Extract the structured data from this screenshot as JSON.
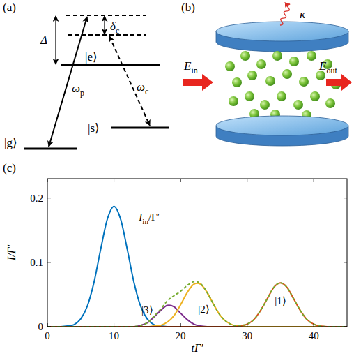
{
  "panel_a": {
    "panel_label": "(a)",
    "levels": {
      "e": "|e⟩",
      "g": "|g⟩",
      "s": "|s⟩"
    },
    "detuning": "Δ",
    "two_photon_detuning": {
      "main": "δ",
      "sub": "c"
    },
    "probe": {
      "main": "ω",
      "sub": "p"
    },
    "control": {
      "main": "ω",
      "sub": "c"
    }
  },
  "panel_b": {
    "panel_label": "(b)",
    "input": {
      "main": "E",
      "sub": "in"
    },
    "output": {
      "main": "E",
      "sub": "out"
    },
    "decay": "κ"
  },
  "chart_data": {
    "type": "line",
    "panel_label": "(c)",
    "x_label": "tΓ′",
    "y_label": "I/Γ′",
    "x": [
      0,
      1,
      2,
      3,
      4,
      5,
      6,
      7,
      8,
      9,
      10,
      11,
      12,
      13,
      14,
      15,
      16,
      17,
      18,
      19,
      20,
      21,
      22,
      23,
      24,
      25,
      26,
      27,
      28,
      29,
      30,
      31,
      32,
      33,
      34,
      35,
      36,
      37,
      38,
      39,
      40,
      41,
      42,
      43,
      44,
      45
    ],
    "xlim": [
      0,
      45
    ],
    "ylim": [
      0,
      0.23
    ],
    "xticks": [
      0,
      10,
      20,
      30,
      40
    ],
    "yticks": [
      0,
      0.1,
      0.2
    ],
    "series": [
      {
        "color": "#0072BD",
        "line_style": "solid",
        "values": [
          0,
          0,
          0,
          0.001,
          0.003,
          0.012,
          0.032,
          0.069,
          0.12,
          0.167,
          0.187,
          0.167,
          0.12,
          0.069,
          0.032,
          0.012,
          0.003,
          0.001,
          0,
          0,
          0,
          0,
          0,
          0,
          0,
          0,
          0,
          0,
          0,
          0,
          0,
          0,
          0,
          0,
          0,
          0,
          0,
          0,
          0,
          0,
          0,
          0,
          0,
          0,
          0,
          0
        ]
      },
      {
        "color": "#7E2F8E",
        "line_style": "solid",
        "values": [
          0,
          0,
          0,
          0,
          0,
          0,
          0,
          0,
          0,
          0,
          0,
          0,
          0,
          0,
          0.002,
          0.006,
          0.015,
          0.025,
          0.033,
          0.031,
          0.021,
          0.011,
          0.004,
          0.001,
          0,
          0,
          0,
          0,
          0,
          0,
          0,
          0,
          0,
          0,
          0,
          0,
          0,
          0,
          0,
          0,
          0,
          0,
          0,
          0,
          0,
          0
        ]
      },
      {
        "color": "#EDB120",
        "line_style": "solid",
        "values": [
          0,
          0,
          0,
          0,
          0,
          0,
          0,
          0,
          0,
          0,
          0,
          0,
          0,
          0,
          0,
          0,
          0.001,
          0.002,
          0.007,
          0.017,
          0.034,
          0.053,
          0.066,
          0.066,
          0.053,
          0.034,
          0.017,
          0.007,
          0.002,
          0.001,
          0,
          0,
          0,
          0,
          0,
          0,
          0,
          0,
          0,
          0,
          0,
          0,
          0,
          0,
          0,
          0
        ]
      },
      {
        "color": "#D95319",
        "line_style": "solid",
        "values": [
          0,
          0,
          0,
          0,
          0,
          0,
          0,
          0,
          0,
          0,
          0,
          0,
          0,
          0,
          0,
          0,
          0,
          0,
          0,
          0,
          0,
          0,
          0,
          0,
          0,
          0,
          0,
          0,
          0,
          0.001,
          0.004,
          0.011,
          0.025,
          0.043,
          0.061,
          0.068,
          0.061,
          0.043,
          0.025,
          0.011,
          0.004,
          0.001,
          0,
          0,
          0,
          0
        ]
      },
      {
        "color": "#77AC30",
        "line_style": "dashed",
        "values": [
          0,
          0,
          0,
          0,
          0,
          0,
          0,
          0,
          0,
          0,
          0,
          0,
          0,
          0,
          0.002,
          0.006,
          0.016,
          0.027,
          0.04,
          0.048,
          0.055,
          0.064,
          0.07,
          0.067,
          0.053,
          0.034,
          0.017,
          0.007,
          0.002,
          0.002,
          0.004,
          0.011,
          0.025,
          0.043,
          0.061,
          0.068,
          0.061,
          0.043,
          0.025,
          0.011,
          0.004,
          0.001,
          0,
          0,
          0,
          0
        ]
      }
    ],
    "annotations": [
      {
        "main": "I",
        "sub": "in",
        "rest": "/Γ′",
        "x": 15.3,
        "y": 0.165
      },
      {
        "text": "|3⟩",
        "x": 15.0,
        "y": 0.021
      },
      {
        "text": "|2⟩",
        "x": 23.5,
        "y": 0.022
      },
      {
        "text": "|1⟩",
        "x": 35,
        "y": 0.035
      }
    ]
  }
}
